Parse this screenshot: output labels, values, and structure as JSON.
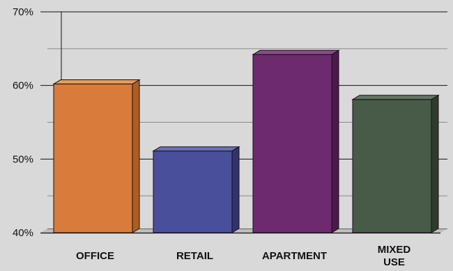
{
  "chart_data": {
    "type": "bar",
    "title": "",
    "xlabel": "",
    "ylabel": "",
    "categories": [
      "OFFICE",
      "RETAIL",
      "APARTMENT",
      "MIXED USE"
    ],
    "category_label_lines": [
      [
        "OFFICE"
      ],
      [
        "RETAIL"
      ],
      [
        "APARTMENT"
      ],
      [
        "MIXED",
        "USE"
      ]
    ],
    "values": [
      60.2,
      51.1,
      64.2,
      58.1
    ],
    "ylim": [
      40,
      70
    ],
    "yticks": [
      40,
      50,
      60,
      70
    ],
    "ytick_labels": [
      "40%",
      "50%",
      "60%",
      "70%"
    ],
    "grid": true,
    "minor_gridlines": [
      45,
      55,
      65
    ],
    "legend": "none",
    "colors": {
      "background": "#d9d9d9",
      "bar_fronts": [
        "#d97b3a",
        "#4a4f9b",
        "#6e2a6e",
        "#485a48"
      ],
      "bar_sides": [
        "#b05d24",
        "#31346c",
        "#4a1a4a",
        "#2e3b2e"
      ],
      "bar_tops": [
        "#e59a5e",
        "#6a70b8",
        "#8c4a8c",
        "#627562"
      ],
      "grid_major": "#111111",
      "grid_minor": "#8a8a8a"
    }
  }
}
